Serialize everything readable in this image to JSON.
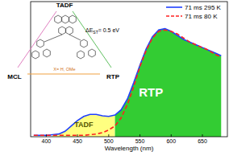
{
  "chart_data": {
    "type": "line",
    "x_label": "Wavelength (nm)",
    "x": [
      380,
      390,
      400,
      410,
      420,
      430,
      440,
      450,
      460,
      470,
      480,
      490,
      500,
      510,
      520,
      530,
      540,
      550,
      560,
      570,
      580,
      590,
      600,
      610,
      620,
      630,
      640,
      650,
      660,
      670,
      680
    ],
    "series": [
      {
        "name": "71 ms 295 K",
        "color": "#2040ff",
        "line_style": "solid",
        "values": [
          0.01,
          0.01,
          0.01,
          0.015,
          0.02,
          0.04,
          0.08,
          0.12,
          0.15,
          0.165,
          0.165,
          0.155,
          0.15,
          0.16,
          0.2,
          0.28,
          0.4,
          0.53,
          0.65,
          0.74,
          0.79,
          0.8,
          0.78,
          0.75,
          0.72,
          0.7,
          0.68,
          0.66,
          0.64,
          0.62,
          0.6
        ]
      },
      {
        "name": "71 ms 80 K",
        "color": "#ff2020",
        "line_style": "dashed",
        "values": [
          0.01,
          0.01,
          0.01,
          0.01,
          0.01,
          0.01,
          0.01,
          0.01,
          0.01,
          0.015,
          0.02,
          0.03,
          0.05,
          0.08,
          0.14,
          0.24,
          0.37,
          0.52,
          0.64,
          0.73,
          0.78,
          0.79,
          0.78,
          0.76,
          0.73,
          0.7,
          0.68,
          0.66,
          0.64,
          0.61,
          0.59
        ]
      }
    ],
    "regions": [
      {
        "label": "TADF",
        "color": "#ffff80",
        "range": [
          410,
          510
        ]
      },
      {
        "label": "RTP",
        "color": "#33cc33",
        "range": [
          510,
          690
        ]
      }
    ],
    "xlim": [
      375,
      690
    ],
    "xticks": [
      400,
      450,
      500,
      550,
      600,
      650
    ],
    "ylim": [
      0,
      1
    ],
    "yticks": [],
    "tick_labels": "x",
    "legend": "upper right",
    "grid": false
  },
  "diagram": {
    "corners": [
      "TADF",
      "MCL",
      "RTP"
    ],
    "gap_main": "ΔE",
    "gap_sub": "ST",
    "gap_rest": "= 0.5 eV",
    "substituent": "X= H, OMe"
  }
}
